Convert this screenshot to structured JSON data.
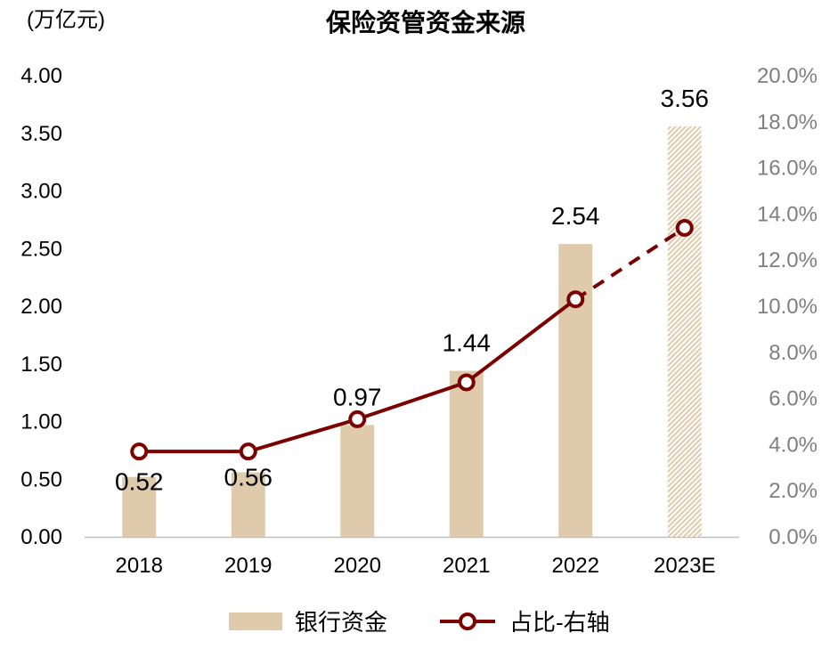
{
  "chart_data": {
    "type": "bar+line",
    "title": "保险资管资金来源",
    "ylabel_left": "(万亿元)",
    "categories": [
      "2018",
      "2019",
      "2020",
      "2021",
      "2022",
      "2023E"
    ],
    "series": [
      {
        "name": "银行资金",
        "type": "bar",
        "axis": "left",
        "values": [
          0.52,
          0.56,
          0.97,
          1.44,
          2.54,
          3.56
        ],
        "data_labels": [
          "0.52",
          "0.56",
          "0.97",
          "1.44",
          "2.54",
          "3.56"
        ],
        "color": "#dfcbab",
        "estimated_last": true
      },
      {
        "name": "占比-右轴",
        "type": "line",
        "axis": "right",
        "values": [
          3.7,
          3.7,
          5.1,
          6.7,
          10.3,
          13.4
        ],
        "color": "#7b0000",
        "dashed_last_segment": true
      }
    ],
    "y_left": {
      "range": [
        0,
        4
      ],
      "ticks": [
        "0.00",
        "0.50",
        "1.00",
        "1.50",
        "2.00",
        "2.50",
        "3.00",
        "3.50",
        "4.00"
      ]
    },
    "y_right": {
      "range": [
        0,
        20
      ],
      "unit": "%",
      "ticks": [
        "0.0%",
        "2.0%",
        "4.0%",
        "6.0%",
        "8.0%",
        "10.0%",
        "12.0%",
        "14.0%",
        "16.0%",
        "18.0%",
        "20.0%"
      ]
    },
    "grid": false,
    "legend": "bottom"
  }
}
